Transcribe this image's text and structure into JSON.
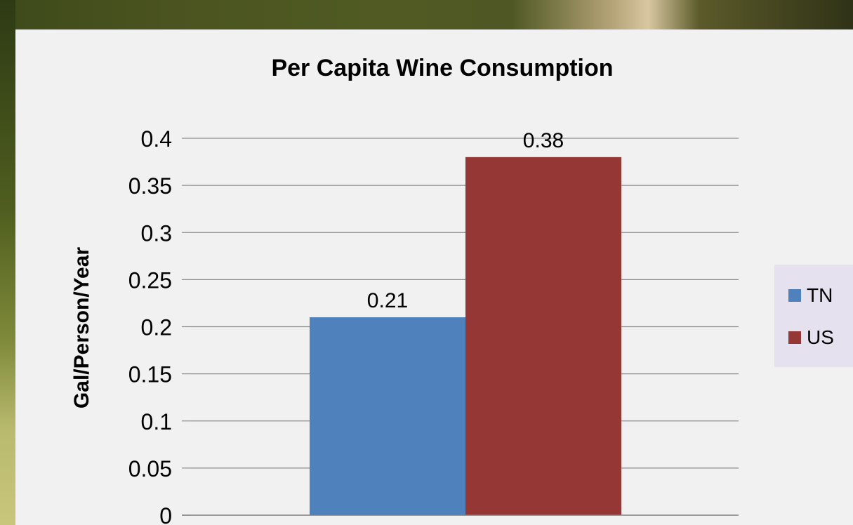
{
  "chart_data": {
    "type": "bar",
    "title": "Per Capita Wine Consumption",
    "xlabel": "",
    "ylabel": "Gal/Person/Year",
    "ylim": [
      0,
      0.4
    ],
    "yticks": [
      "0",
      "0.05",
      "0.1",
      "0.15",
      "0.2",
      "0.25",
      "0.3",
      "0.35",
      "0.4"
    ],
    "grid": true,
    "legend_position": "right",
    "categories": [
      ""
    ],
    "series": [
      {
        "name": "TN",
        "values": [
          0.21
        ],
        "data_label": "0.21",
        "color": "#4f81bd"
      },
      {
        "name": "US",
        "values": [
          0.38
        ],
        "data_label": "0.38",
        "color": "#953735"
      }
    ]
  }
}
